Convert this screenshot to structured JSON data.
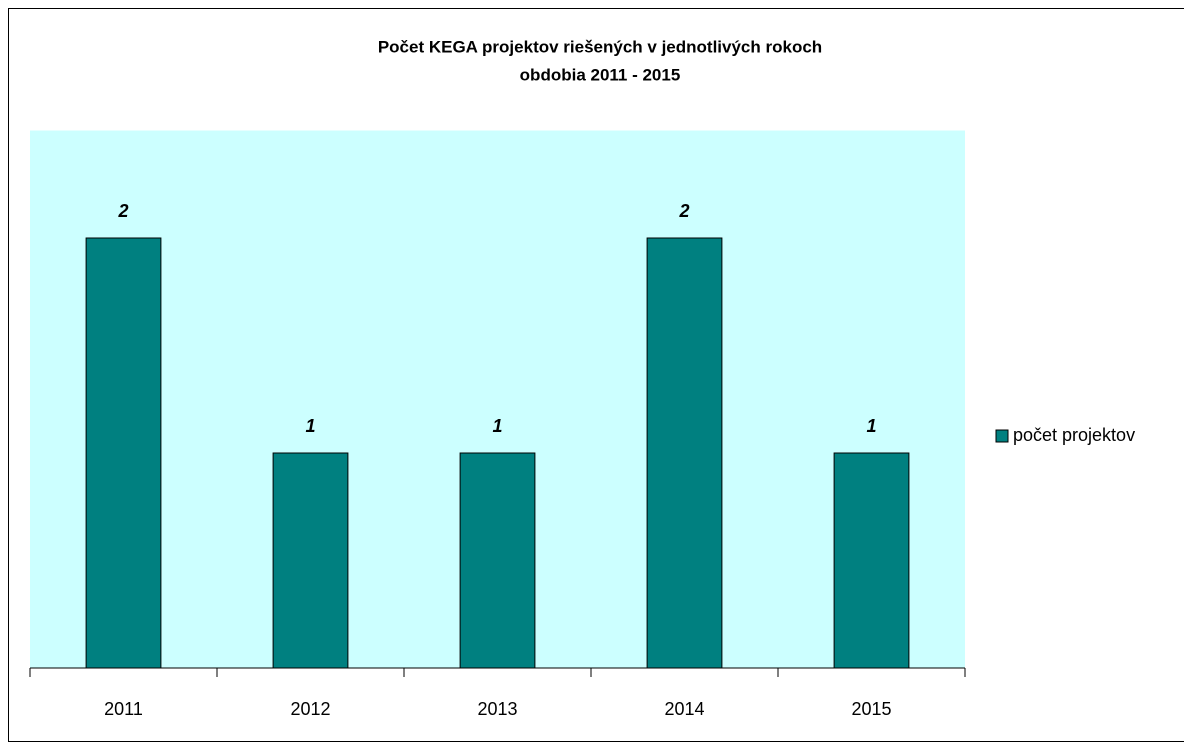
{
  "chart_data": {
    "type": "bar",
    "title": [
      "Počet KEGA projektov riešených v jednotlivých rokoch",
      "obdobia  2011 - 2015"
    ],
    "categories": [
      "2011",
      "2012",
      "2013",
      "2014",
      "2015"
    ],
    "series": [
      {
        "name": "počet projektov",
        "color": "#008080",
        "values": [
          2,
          1,
          1,
          2,
          1
        ]
      }
    ],
    "ylim": [
      0,
      2.5
    ],
    "plot_background": "#ccffff",
    "legend": "right"
  }
}
